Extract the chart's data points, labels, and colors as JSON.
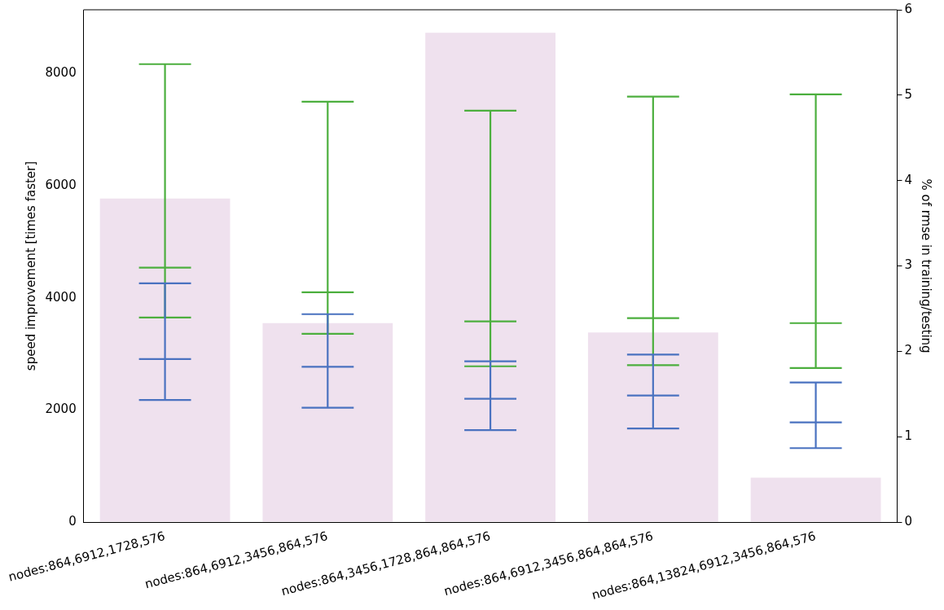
{
  "chart_data": {
    "type": "bar",
    "categories": [
      "nodes:864,6912,1728,576",
      "nodes:864,6912,3456,864,576",
      "nodes:864,3456,1728,864,864,576",
      "nodes:864,6912,3456,864,864,576",
      "nodes:864,13824,6912,3456,864,576"
    ],
    "ylabel": "speed improvement [times faster]",
    "y2label": "% of rmse in training/testing",
    "ylim": [
      0,
      9140
    ],
    "yticks": [
      0,
      2000,
      4000,
      6000,
      8000
    ],
    "y2lim": [
      0,
      6
    ],
    "y2ticks": [
      0,
      1,
      2,
      3,
      4,
      5,
      6
    ],
    "grid": false,
    "legend": false,
    "series": [
      {
        "axis": "y2",
        "color": "#efe1ee",
        "values": [
          3.79,
          2.33,
          5.73,
          2.22,
          0.52
        ]
      },
      {
        "type": "box",
        "color": "#4caf3e",
        "boxes": [
          {
            "low": 3650,
            "q1": 4540,
            "median": 4540,
            "q3": 4540,
            "high": 8170
          },
          {
            "low": 3360,
            "q1": 4100,
            "median": 4100,
            "q3": 4100,
            "high": 7500
          },
          {
            "low": 2780,
            "q1": 3580,
            "median": 3580,
            "q3": 3580,
            "high": 7340
          },
          {
            "low": 2800,
            "q1": 3640,
            "median": 3640,
            "q3": 3640,
            "high": 7590
          },
          {
            "low": 2750,
            "q1": 3550,
            "median": 3550,
            "q3": 3550,
            "high": 7630
          }
        ]
      },
      {
        "type": "box",
        "color": "#4a72c0",
        "boxes": [
          {
            "low": 2180,
            "q1": 2910,
            "median": 2910,
            "q3": 2910,
            "high": 4260
          },
          {
            "low": 2040,
            "q1": 2770,
            "median": 2770,
            "q3": 2770,
            "high": 3710
          },
          {
            "low": 1640,
            "q1": 2200,
            "median": 2200,
            "q3": 2200,
            "high": 2870
          },
          {
            "low": 1670,
            "q1": 2260,
            "median": 2260,
            "q3": 2260,
            "high": 2990
          },
          {
            "low": 1320,
            "q1": 1780,
            "median": 1780,
            "q3": 1780,
            "high": 2490
          }
        ]
      }
    ]
  }
}
